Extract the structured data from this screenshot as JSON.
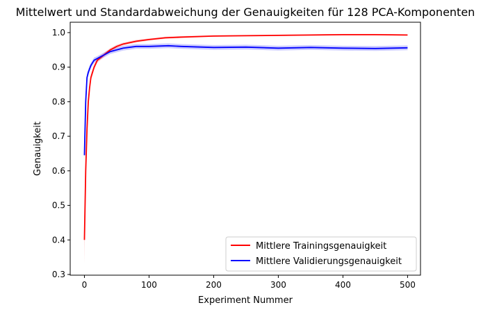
{
  "chart_data": {
    "type": "line",
    "title": "Mittelwert und Standardabweichung der Genauigkeiten für 128 PCA-Komponenten",
    "xlabel": "Experiment Nummer",
    "ylabel": "Genauigkeit",
    "xlim": [
      -22,
      520
    ],
    "ylim": [
      0.298,
      1.03
    ],
    "xticks": [
      0,
      100,
      200,
      300,
      400,
      500
    ],
    "yticks": [
      0.3,
      0.4,
      0.5,
      0.6,
      0.7,
      0.8,
      0.9,
      1.0
    ],
    "ytick_labels": [
      "0.3",
      "0.4",
      "0.5",
      "0.6",
      "0.7",
      "0.8",
      "0.9",
      "1.0"
    ],
    "grid": false,
    "legend_position": "lower-right",
    "series": [
      {
        "name": "Mittlere Trainingsgenauigkeit",
        "color": "#ff0000",
        "x": [
          0,
          2,
          4,
          6,
          8,
          10,
          15,
          20,
          30,
          40,
          50,
          60,
          80,
          100,
          125,
          150,
          200,
          250,
          300,
          350,
          400,
          450,
          500
        ],
        "mean": [
          0.4,
          0.6,
          0.72,
          0.8,
          0.84,
          0.87,
          0.9,
          0.92,
          0.935,
          0.95,
          0.96,
          0.967,
          0.975,
          0.98,
          0.985,
          0.987,
          0.99,
          0.991,
          0.992,
          0.993,
          0.994,
          0.994,
          0.993
        ],
        "std": [
          0.07,
          0.04,
          0.02,
          0.015,
          0.012,
          0.01,
          0.008,
          0.007,
          0.006,
          0.005,
          0.005,
          0.004,
          0.004,
          0.003,
          0.003,
          0.003,
          0.002,
          0.002,
          0.002,
          0.002,
          0.002,
          0.002,
          0.002
        ]
      },
      {
        "name": "Mittlere Validierungsgenauigkeit",
        "color": "#0000ff",
        "x": [
          0,
          2,
          4,
          6,
          10,
          15,
          20,
          30,
          40,
          60,
          80,
          100,
          130,
          150,
          200,
          250,
          300,
          350,
          400,
          450,
          500
        ],
        "mean": [
          0.645,
          0.8,
          0.87,
          0.885,
          0.905,
          0.92,
          0.925,
          0.935,
          0.945,
          0.955,
          0.96,
          0.96,
          0.962,
          0.96,
          0.957,
          0.958,
          0.955,
          0.957,
          0.955,
          0.954,
          0.956
        ],
        "std": [
          0.03,
          0.02,
          0.012,
          0.01,
          0.008,
          0.008,
          0.007,
          0.007,
          0.007,
          0.007,
          0.007,
          0.007,
          0.007,
          0.007,
          0.007,
          0.007,
          0.007,
          0.007,
          0.007,
          0.007,
          0.007
        ]
      }
    ]
  }
}
